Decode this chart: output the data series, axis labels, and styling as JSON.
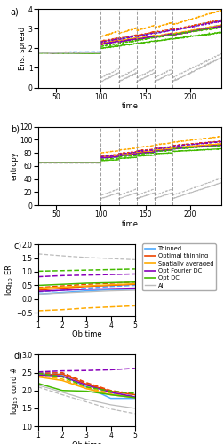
{
  "colors": {
    "thinned": "#4daaff",
    "optimal_thinning": "#ee4400",
    "spatially_averaged": "#ffaa00",
    "opt_fourier_dc": "#8800bb",
    "opt_dc": "#44bb00",
    "all": "#bbbbbb"
  },
  "legend_labels": [
    "Thinned",
    "Optimal thinning",
    "Spatially averaged",
    "Opt Fourier DC",
    "Opt DC",
    "All"
  ],
  "panel_a": {
    "xlabel": "time",
    "ylabel": "Ens. spread",
    "xlim": [
      30,
      235
    ],
    "ylim": [
      0,
      4
    ],
    "yticks": [
      0,
      1,
      2,
      3,
      4
    ],
    "xticks": [
      50,
      100,
      150,
      200
    ],
    "vlines": [
      100,
      120,
      140,
      160,
      180
    ]
  },
  "panel_b": {
    "xlabel": "time",
    "ylabel": "entropy",
    "xlim": [
      30,
      235
    ],
    "ylim": [
      0,
      120
    ],
    "yticks": [
      0,
      20,
      40,
      60,
      80,
      100,
      120
    ],
    "xticks": [
      50,
      100,
      150,
      200
    ],
    "vlines": [
      100,
      120,
      140,
      160,
      180
    ]
  },
  "panel_c": {
    "xlabel": "Ob time",
    "ylabel": "log$_{10}$ ER",
    "xlim": [
      1,
      5
    ],
    "ylim": [
      -0.6,
      2.0
    ],
    "yticks": [
      -0.5,
      0,
      0.5,
      1.0,
      1.5,
      2.0
    ],
    "xticks": [
      1,
      2,
      3,
      4,
      5
    ],
    "ob_times": [
      1,
      2,
      3,
      4,
      5
    ],
    "solid": {
      "thinned": [
        0.18,
        0.24,
        0.3,
        0.34,
        0.36
      ],
      "optimal_thinning": [
        0.32,
        0.4,
        0.46,
        0.5,
        0.54
      ],
      "spatially_averaged": [
        0.4,
        0.44,
        0.48,
        0.52,
        0.56
      ],
      "opt_fourier_dc": [
        0.28,
        0.32,
        0.36,
        0.38,
        0.4
      ],
      "opt_dc": [
        0.5,
        0.54,
        0.58,
        0.6,
        0.62
      ],
      "all_solid": [
        0.18,
        0.22,
        0.26,
        0.3,
        0.32
      ]
    },
    "dashed": {
      "thinned": [
        0.26,
        0.32,
        0.4,
        0.46,
        0.5
      ],
      "optimal_thinning": [
        0.42,
        0.48,
        0.54,
        0.58,
        0.62
      ],
      "spatially_averaged": [
        -0.42,
        -0.38,
        -0.32,
        -0.28,
        -0.24
      ],
      "opt_fourier_dc": [
        0.82,
        0.86,
        0.88,
        0.9,
        0.92
      ],
      "opt_dc": [
        1.02,
        1.04,
        1.06,
        1.08,
        1.1
      ],
      "all_dashed": [
        1.65,
        1.58,
        1.52,
        1.48,
        1.44
      ]
    }
  },
  "panel_d": {
    "xlabel": "Ob time",
    "ylabel": "log$_{10}$ cond #",
    "xlim": [
      1,
      5
    ],
    "ylim": [
      1.0,
      3.0
    ],
    "yticks": [
      1.0,
      1.5,
      2.0,
      2.5,
      3.0
    ],
    "xticks": [
      1,
      2,
      3,
      4,
      5
    ],
    "ob_times": [
      1,
      2,
      3,
      4,
      5
    ],
    "solid": {
      "thinned": [
        2.48,
        2.42,
        2.1,
        1.78,
        1.78
      ],
      "optimal_thinning": [
        2.42,
        2.46,
        2.18,
        1.98,
        1.88
      ],
      "spatially_averaged": [
        2.38,
        2.28,
        2.05,
        1.88,
        1.8
      ],
      "opt_fourier_dc": [
        2.44,
        2.4,
        2.15,
        1.95,
        1.82
      ],
      "opt_dc": [
        2.2,
        2.0,
        1.98,
        1.88,
        1.8
      ],
      "all_solid": [
        2.15,
        1.95,
        1.75,
        1.6,
        1.5
      ]
    },
    "dashed": {
      "thinned": [
        2.5,
        2.48,
        2.2,
        1.92,
        1.85
      ],
      "optimal_thinning": [
        2.48,
        2.5,
        2.22,
        2.0,
        1.9
      ],
      "spatially_averaged": [
        2.42,
        2.32,
        2.08,
        1.92,
        1.82
      ],
      "opt_fourier_dc": [
        2.52,
        2.55,
        2.56,
        2.58,
        2.62
      ],
      "opt_dc": [
        2.48,
        2.38,
        2.1,
        1.98,
        1.92
      ],
      "all_dashed": [
        2.1,
        1.88,
        1.68,
        1.48,
        1.35
      ]
    }
  }
}
